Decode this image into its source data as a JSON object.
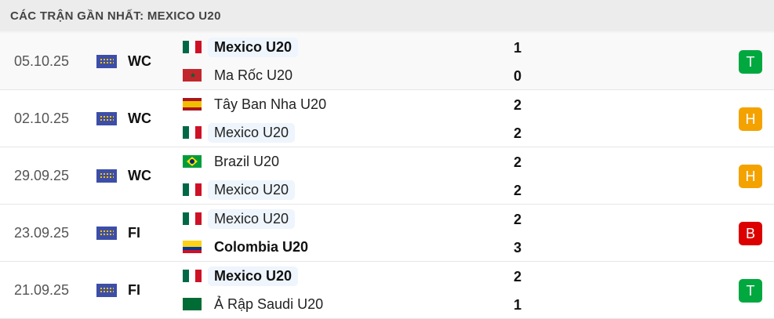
{
  "header": {
    "title": "CÁC TRẬN GẦN NHẤT: MEXICO U20"
  },
  "colors": {
    "win": "#00a83f",
    "draw": "#f4a200",
    "loss": "#dc0000",
    "highlight": "#eef5fd"
  },
  "matches": [
    {
      "date": "05.10.25",
      "competition": "WC",
      "home": {
        "name": "Mexico U20",
        "flag": "mexico",
        "bold": true,
        "focus": true
      },
      "away": {
        "name": "Ma Rốc U20",
        "flag": "morocco",
        "bold": false,
        "focus": false
      },
      "home_score": "1",
      "away_score": "0",
      "result": "T",
      "result_type": "win"
    },
    {
      "date": "02.10.25",
      "competition": "WC",
      "home": {
        "name": "Tây Ban Nha U20",
        "flag": "spain",
        "bold": false,
        "focus": false
      },
      "away": {
        "name": "Mexico U20",
        "flag": "mexico",
        "bold": false,
        "focus": true
      },
      "home_score": "2",
      "away_score": "2",
      "result": "H",
      "result_type": "draw"
    },
    {
      "date": "29.09.25",
      "competition": "WC",
      "home": {
        "name": "Brazil U20",
        "flag": "brazil",
        "bold": false,
        "focus": false
      },
      "away": {
        "name": "Mexico U20",
        "flag": "mexico",
        "bold": false,
        "focus": true
      },
      "home_score": "2",
      "away_score": "2",
      "result": "H",
      "result_type": "draw"
    },
    {
      "date": "23.09.25",
      "competition": "FI",
      "home": {
        "name": "Mexico U20",
        "flag": "mexico",
        "bold": false,
        "focus": true
      },
      "away": {
        "name": "Colombia U20",
        "flag": "colombia",
        "bold": true,
        "focus": false
      },
      "home_score": "2",
      "away_score": "3",
      "result": "B",
      "result_type": "loss"
    },
    {
      "date": "21.09.25",
      "competition": "FI",
      "home": {
        "name": "Mexico U20",
        "flag": "mexico",
        "bold": true,
        "focus": true
      },
      "away": {
        "name": "Ả Rập Saudi U20",
        "flag": "saudi-arabia",
        "bold": false,
        "focus": false
      },
      "home_score": "2",
      "away_score": "1",
      "result": "T",
      "result_type": "win"
    }
  ]
}
